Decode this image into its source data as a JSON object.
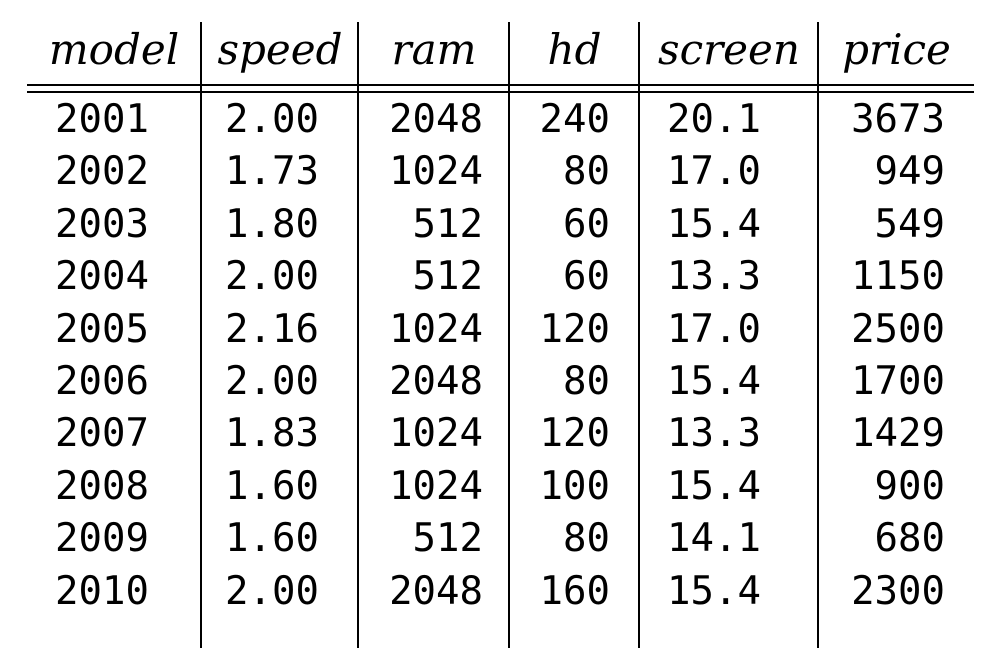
{
  "table": {
    "headers": [
      "model",
      "speed",
      "ram",
      "hd",
      "screen",
      "price"
    ],
    "rows": [
      [
        "2001",
        "2.00",
        "2048",
        "240",
        "20.1",
        "3673"
      ],
      [
        "2002",
        "1.73",
        "1024",
        "80",
        "17.0",
        "949"
      ],
      [
        "2003",
        "1.80",
        "512",
        "60",
        "15.4",
        "549"
      ],
      [
        "2004",
        "2.00",
        "512",
        "60",
        "13.3",
        "1150"
      ],
      [
        "2005",
        "2.16",
        "1024",
        "120",
        "17.0",
        "2500"
      ],
      [
        "2006",
        "2.00",
        "2048",
        "80",
        "15.4",
        "1700"
      ],
      [
        "2007",
        "1.83",
        "1024",
        "120",
        "13.3",
        "1429"
      ],
      [
        "2008",
        "1.60",
        "1024",
        "100",
        "15.4",
        "900"
      ],
      [
        "2009",
        "1.60",
        "512",
        "80",
        "14.1",
        "680"
      ],
      [
        "2010",
        "2.00",
        "2048",
        "160",
        "15.4",
        "2300"
      ]
    ]
  }
}
